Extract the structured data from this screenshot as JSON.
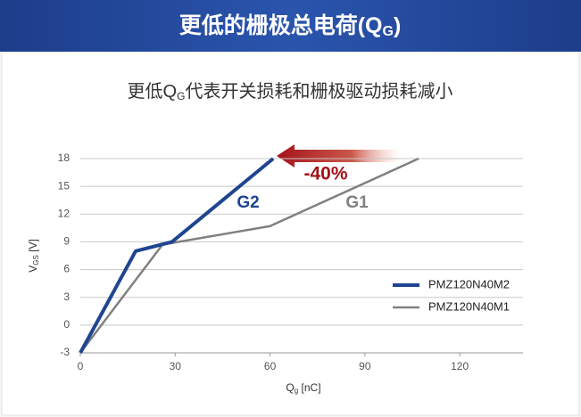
{
  "chart_data": {
    "type": "line",
    "title": {
      "text": "更低的栅极总电荷(Q",
      "sub": "G",
      "tail": ")"
    },
    "subtitle": {
      "text": "更低Q",
      "sub": "G",
      "tail": "代表开关损耗和栅极驱动损耗减小"
    },
    "xlabel": {
      "text": "Q",
      "sub": "g",
      "tail": " [nC]"
    },
    "ylabel": {
      "text": "V",
      "sub": "GS",
      "tail": " [V]"
    },
    "xlim": [
      0,
      140
    ],
    "ylim": [
      -3,
      18
    ],
    "xticks": [
      0,
      30,
      60,
      90,
      120
    ],
    "yticks": [
      -3,
      0,
      3,
      6,
      9,
      12,
      15,
      18
    ],
    "grid": true,
    "legend": "lower right",
    "series": [
      {
        "name": "PMZ120N40M2",
        "color": "#1f4591",
        "x": [
          0,
          17.5,
          29,
          61
        ],
        "values": [
          -3,
          8,
          9,
          18
        ]
      },
      {
        "name": "PMZ120N40M1",
        "color": "#808080",
        "x": [
          0,
          26,
          60,
          107
        ],
        "values": [
          -3,
          8.7,
          10.7,
          18
        ]
      }
    ],
    "annotations": [
      {
        "text": "G2",
        "color": "#1f4591"
      },
      {
        "text": "G1",
        "color": "#808080"
      },
      {
        "text": "-40%",
        "color": "#a3121a"
      }
    ]
  }
}
